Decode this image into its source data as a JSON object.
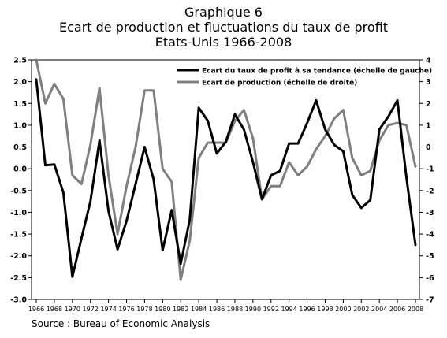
{
  "titles": {
    "line1": "Graphique 6",
    "line2": "Ecart de production et fluctuations du taux de profit",
    "line3": "Etats-Unis 1966-2008"
  },
  "source": "Source : Bureau of Economic Analysis",
  "colors": {
    "profit": "#000000",
    "output": "#7f7f7f",
    "axis": "#000000"
  },
  "chart_data": {
    "type": "line",
    "title": "",
    "xlabel": "",
    "ylabel": "",
    "legend_position": "top-right",
    "grid": false,
    "x": [
      1966,
      1967,
      1968,
      1969,
      1970,
      1971,
      1972,
      1973,
      1974,
      1975,
      1976,
      1977,
      1978,
      1979,
      1980,
      1981,
      1982,
      1983,
      1984,
      1985,
      1986,
      1987,
      1988,
      1989,
      1990,
      1991,
      1992,
      1993,
      1994,
      1995,
      1996,
      1997,
      1998,
      1999,
      2000,
      2001,
      2002,
      2003,
      2004,
      2005,
      2006,
      2007,
      2008
    ],
    "x_ticks": [
      1966,
      1968,
      1970,
      1972,
      1974,
      1976,
      1978,
      1980,
      1982,
      1984,
      1986,
      1988,
      1990,
      1992,
      1994,
      1996,
      1998,
      2000,
      2002,
      2004,
      2006,
      2008
    ],
    "y_left_ticks": [
      "-3.0",
      "-2.5",
      "-2.0",
      "-1.5",
      "-1.0",
      "-0.5",
      "0.0",
      "0.5",
      "1.0",
      "1.5",
      "2.0",
      "2.5"
    ],
    "y_right_ticks": [
      "-7",
      "-6",
      "-5",
      "-4",
      "-3",
      "-2",
      "-1",
      "0",
      "1",
      "2",
      "3",
      "4"
    ],
    "ylim_left": [
      -3.0,
      2.5
    ],
    "ylim_right": [
      -7,
      4
    ],
    "series": [
      {
        "name": "Ecart du taux de profit à sa tendance (échelle de gauche)",
        "axis": "left",
        "values": [
          2.05,
          0.08,
          0.1,
          -0.55,
          -2.48,
          -1.6,
          -0.75,
          0.65,
          -0.97,
          -1.85,
          -1.2,
          -0.35,
          0.5,
          -0.25,
          -1.87,
          -0.95,
          -2.18,
          -1.17,
          1.4,
          1.1,
          0.35,
          0.62,
          1.25,
          0.9,
          0.15,
          -0.7,
          -0.15,
          -0.05,
          0.58,
          0.58,
          1.05,
          1.57,
          0.9,
          0.55,
          0.4,
          -0.6,
          -0.9,
          -0.72,
          0.9,
          1.2,
          1.57,
          -0.2,
          -1.75
        ]
      },
      {
        "name": "Ecart de production (échelle de droite)",
        "axis": "right",
        "values": [
          4.0,
          2.0,
          2.9,
          2.2,
          -1.3,
          -1.7,
          0.1,
          2.7,
          -1.3,
          -4.0,
          -1.8,
          0.0,
          2.6,
          2.6,
          -1.0,
          -1.6,
          -6.1,
          -4.3,
          -0.5,
          0.2,
          0.2,
          0.2,
          1.2,
          1.7,
          0.4,
          -2.4,
          -1.8,
          -1.8,
          -0.7,
          -1.3,
          -0.9,
          -0.1,
          0.5,
          1.3,
          1.7,
          -0.5,
          -1.3,
          -1.1,
          0.3,
          1.0,
          1.1,
          1.0,
          -0.9
        ]
      }
    ]
  }
}
